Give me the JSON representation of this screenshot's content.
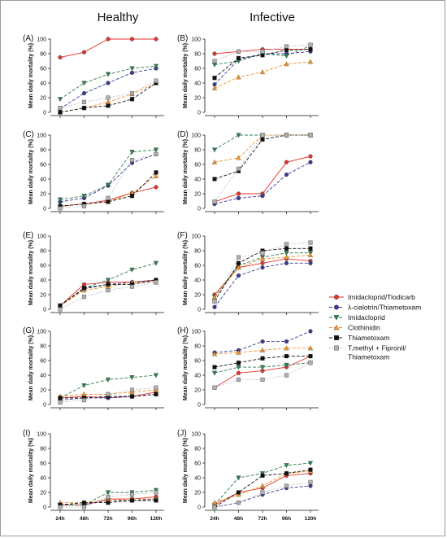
{
  "column_titles": [
    "Healthy",
    "Infective"
  ],
  "x_ticks": [
    "24h",
    "48h",
    "72h",
    "96h",
    "120h"
  ],
  "y_ticks": [
    0,
    20,
    40,
    60,
    80,
    100
  ],
  "ylabel": "Mean daily mortality (%)",
  "legend": [
    {
      "label": "Imidacloprid/Tiodicarb",
      "color": "#e8322c",
      "marker": "circle",
      "dash": "solid"
    },
    {
      "label": "λ-cialotrin/Thiametoxam",
      "color": "#3a3a9c",
      "marker": "circle",
      "dash": "dashed"
    },
    {
      "label": "Imidacloprid",
      "color": "#2e7d4f",
      "marker": "triangle-down",
      "dash": "dashed"
    },
    {
      "label": "Clothinidin",
      "color": "#f0932b",
      "marker": "triangle-up",
      "dash": "dashed"
    },
    {
      "label": "Thiametoxam",
      "color": "#111111",
      "marker": "square",
      "dash": "dashed"
    },
    {
      "label": "T.methyl + Fipronil/",
      "label2": "Thiametoxam",
      "color": "#b0b0b0",
      "marker": "square",
      "dash": "dotted"
    }
  ],
  "chart_data": [
    {
      "panel": "(A)",
      "type": "line",
      "x": [
        "24h",
        "48h",
        "72h",
        "96h",
        "120h"
      ],
      "ylim": [
        0,
        100
      ],
      "series": [
        {
          "name": "Imidacloprid/Tiodicarb",
          "values": [
            75,
            82,
            100,
            100,
            100
          ]
        },
        {
          "name": "λ-cialotrin/Thiametoxam",
          "values": [
            5,
            26,
            40,
            54,
            60
          ]
        },
        {
          "name": "Imidacloprid",
          "values": [
            18,
            40,
            52,
            60,
            63
          ]
        },
        {
          "name": "Clothinidin",
          "values": [
            0,
            6,
            14,
            25,
            40
          ]
        },
        {
          "name": "Thiametoxam",
          "values": [
            0,
            6,
            9,
            18,
            40
          ]
        },
        {
          "name": "T.methyl + Fipronil/Thiametoxam",
          "values": [
            6,
            14,
            20,
            26,
            43
          ]
        }
      ]
    },
    {
      "panel": "(B)",
      "type": "line",
      "x": [
        "24h",
        "48h",
        "72h",
        "96h",
        "120h"
      ],
      "ylim": [
        0,
        100
      ],
      "series": [
        {
          "name": "Imidacloprid/Tiodicarb",
          "values": [
            80,
            83,
            86,
            86,
            86
          ]
        },
        {
          "name": "λ-cialotrin/Thiametoxam",
          "values": [
            38,
            72,
            80,
            80,
            83
          ]
        },
        {
          "name": "Imidacloprid",
          "values": [
            65,
            70,
            80,
            77,
            91
          ]
        },
        {
          "name": "Clothinidin",
          "values": [
            33,
            48,
            55,
            66,
            69
          ]
        },
        {
          "name": "Thiametoxam",
          "values": [
            47,
            74,
            78,
            85,
            86
          ]
        },
        {
          "name": "T.methyl + Fipronil/Thiametoxam",
          "values": [
            70,
            83,
            83,
            90,
            92
          ]
        }
      ]
    },
    {
      "panel": "(C)",
      "type": "line",
      "x": [
        "24h",
        "48h",
        "72h",
        "96h",
        "120h"
      ],
      "ylim": [
        0,
        100
      ],
      "series": [
        {
          "name": "Imidacloprid/Tiodicarb",
          "values": [
            3,
            6,
            11,
            21,
            29
          ]
        },
        {
          "name": "λ-cialotrin/Thiametoxam",
          "values": [
            9,
            14,
            31,
            62,
            74
          ]
        },
        {
          "name": "Imidacloprid",
          "values": [
            12,
            17,
            32,
            77,
            80
          ]
        },
        {
          "name": "Clothinidin",
          "values": [
            3,
            6,
            9,
            21,
            44
          ]
        },
        {
          "name": "Thiametoxam",
          "values": [
            3,
            6,
            9,
            17,
            49
          ]
        },
        {
          "name": "T.methyl + Fipronil/Thiametoxam",
          "values": [
            0,
            3,
            14,
            66,
            74
          ]
        }
      ]
    },
    {
      "panel": "(D)",
      "type": "line",
      "x": [
        "24h",
        "48h",
        "72h",
        "96h",
        "120h"
      ],
      "ylim": [
        0,
        100
      ],
      "series": [
        {
          "name": "Imidacloprid/Tiodicarb",
          "values": [
            9,
            20,
            20,
            63,
            71
          ]
        },
        {
          "name": "λ-cialotrin/Thiametoxam",
          "values": [
            6,
            14,
            17,
            46,
            63
          ]
        },
        {
          "name": "Imidacloprid",
          "values": [
            80,
            100,
            100,
            100,
            100
          ]
        },
        {
          "name": "Clothinidin",
          "values": [
            63,
            69,
            100,
            100,
            100
          ]
        },
        {
          "name": "Thiametoxam",
          "values": [
            40,
            51,
            94,
            100,
            100
          ]
        },
        {
          "name": "T.methyl + Fipronil/Thiametoxam",
          "values": [
            9,
            54,
            100,
            100,
            100
          ]
        }
      ]
    },
    {
      "panel": "(E)",
      "type": "line",
      "x": [
        "24h",
        "48h",
        "72h",
        "96h",
        "120h"
      ],
      "ylim": [
        0,
        100
      ],
      "series": [
        {
          "name": "Imidacloprid/Tiodicarb",
          "values": [
            5,
            34,
            37,
            37,
            40
          ]
        },
        {
          "name": "λ-cialotrin/Thiametoxam",
          "values": [
            5,
            28,
            34,
            37,
            40
          ]
        },
        {
          "name": "Imidacloprid",
          "values": [
            5,
            29,
            40,
            54,
            63
          ]
        },
        {
          "name": "Clothinidin",
          "values": [
            5,
            26,
            31,
            37,
            37
          ]
        },
        {
          "name": "Thiametoxam",
          "values": [
            5,
            29,
            34,
            34,
            40
          ]
        },
        {
          "name": "T.methyl + Fipronil/Thiametoxam",
          "values": [
            0,
            17,
            26,
            31,
            37
          ]
        }
      ]
    },
    {
      "panel": "(F)",
      "type": "line",
      "x": [
        "24h",
        "48h",
        "72h",
        "96h",
        "120h"
      ],
      "ylim": [
        0,
        100
      ],
      "series": [
        {
          "name": "Imidacloprid/Tiodicarb",
          "values": [
            20,
            57,
            63,
            69,
            66
          ]
        },
        {
          "name": "λ-cialotrin/Thiametoxam",
          "values": [
            3,
            46,
            57,
            63,
            63
          ]
        },
        {
          "name": "Imidacloprid",
          "values": [
            17,
            60,
            71,
            77,
            77
          ]
        },
        {
          "name": "Clothinidin",
          "values": [
            17,
            57,
            69,
            71,
            74
          ]
        },
        {
          "name": "Thiametoxam",
          "values": [
            11,
            63,
            80,
            83,
            83
          ]
        },
        {
          "name": "T.methyl + Fipronil/Thiametoxam",
          "values": [
            11,
            71,
            77,
            89,
            91
          ]
        }
      ]
    },
    {
      "panel": "(G)",
      "type": "line",
      "x": [
        "24h",
        "48h",
        "72h",
        "96h",
        "120h"
      ],
      "ylim": [
        0,
        100
      ],
      "series": [
        {
          "name": "Imidacloprid/Tiodicarb",
          "values": [
            9,
            11,
            9,
            11,
            17
          ]
        },
        {
          "name": "λ-cialotrin/Thiametoxam",
          "values": [
            6,
            9,
            9,
            11,
            14
          ]
        },
        {
          "name": "Imidacloprid",
          "values": [
            9,
            26,
            34,
            37,
            40
          ]
        },
        {
          "name": "Clothinidin",
          "values": [
            11,
            14,
            14,
            17,
            20
          ]
        },
        {
          "name": "Thiametoxam",
          "values": [
            9,
            9,
            11,
            11,
            14
          ]
        },
        {
          "name": "T.methyl + Fipronil/Thiametoxam",
          "values": [
            3,
            6,
            14,
            20,
            23
          ]
        }
      ]
    },
    {
      "panel": "(H)",
      "type": "line",
      "x": [
        "24h",
        "48h",
        "72h",
        "96h",
        "120h"
      ],
      "ylim": [
        0,
        100
      ],
      "series": [
        {
          "name": "Imidacloprid/Tiodicarb",
          "values": [
            23,
            43,
            46,
            51,
            66
          ]
        },
        {
          "name": "λ-cialotrin/Thiametoxam",
          "values": [
            71,
            74,
            86,
            86,
            100
          ]
        },
        {
          "name": "Imidacloprid",
          "values": [
            43,
            51,
            51,
            54,
            57
          ]
        },
        {
          "name": "Clothinidin",
          "values": [
            69,
            71,
            74,
            77,
            77
          ]
        },
        {
          "name": "Thiametoxam",
          "values": [
            51,
            57,
            63,
            66,
            66
          ]
        },
        {
          "name": "T.methyl + Fipronil/Thiametoxam",
          "values": [
            23,
            34,
            34,
            40,
            57
          ]
        }
      ]
    },
    {
      "panel": "(I)",
      "type": "line",
      "x": [
        "24h",
        "48h",
        "72h",
        "96h",
        "120h"
      ],
      "ylim": [
        0,
        100
      ],
      "series": [
        {
          "name": "Imidacloprid/Tiodicarb",
          "values": [
            3,
            3,
            11,
            11,
            14
          ]
        },
        {
          "name": "λ-cialotrin/Thiametoxam",
          "values": [
            3,
            3,
            9,
            9,
            11
          ]
        },
        {
          "name": "Imidacloprid",
          "values": [
            3,
            3,
            20,
            20,
            23
          ]
        },
        {
          "name": "Clothinidin",
          "values": [
            6,
            6,
            9,
            11,
            11
          ]
        },
        {
          "name": "Thiametoxam",
          "values": [
            3,
            6,
            6,
            9,
            9
          ]
        },
        {
          "name": "T.methyl + Fipronil/Thiametoxam",
          "values": [
            0,
            0,
            14,
            17,
            20
          ]
        }
      ]
    },
    {
      "panel": "(J)",
      "type": "line",
      "x": [
        "24h",
        "48h",
        "72h",
        "96h",
        "120h"
      ],
      "ylim": [
        0,
        100
      ],
      "series": [
        {
          "name": "Imidacloprid/Tiodicarb",
          "values": [
            3,
            20,
            26,
            43,
            46
          ]
        },
        {
          "name": "λ-cialotrin/Thiametoxam",
          "values": [
            0,
            6,
            17,
            26,
            29
          ]
        },
        {
          "name": "Imidacloprid",
          "values": [
            3,
            40,
            46,
            57,
            60
          ]
        },
        {
          "name": "Clothinidin",
          "values": [
            6,
            17,
            29,
            46,
            49
          ]
        },
        {
          "name": "Thiametoxam",
          "values": [
            0,
            20,
            43,
            46,
            51
          ]
        },
        {
          "name": "T.methyl + Fipronil/Thiametoxam",
          "values": [
            0,
            6,
            20,
            29,
            34
          ]
        }
      ]
    }
  ]
}
